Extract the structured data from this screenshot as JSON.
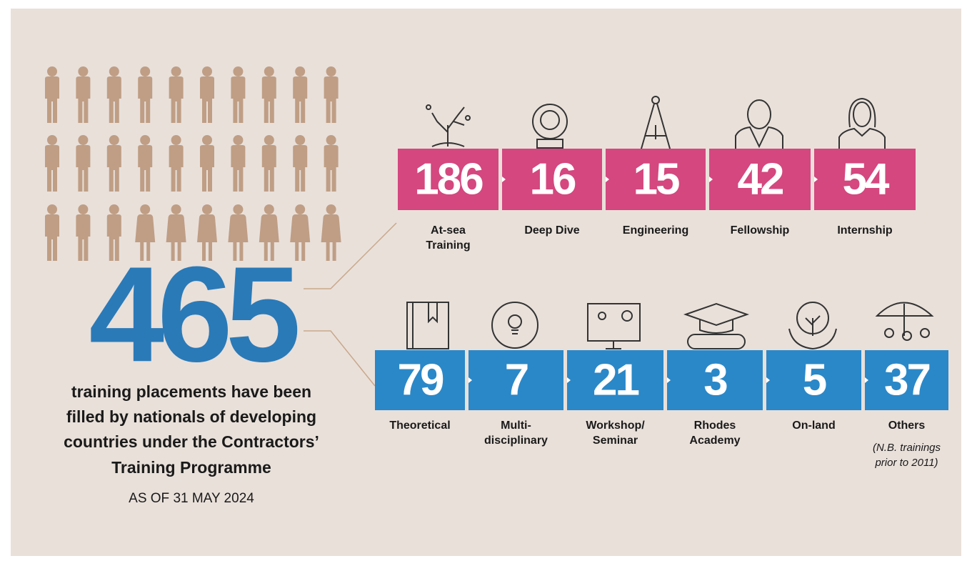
{
  "headline": {
    "value": 465,
    "lines": [
      "training placements have been",
      "filled by nationals of developing",
      "countries under the Contractors’",
      "Training Programme"
    ],
    "date": "AS OF 31 MAY 2024"
  },
  "top_row": [
    {
      "value": 186,
      "label": [
        "At-sea",
        "Training"
      ]
    },
    {
      "value": 16,
      "label": [
        "Deep Dive"
      ]
    },
    {
      "value": 15,
      "label": [
        "Engineering"
      ]
    },
    {
      "value": 42,
      "label": [
        "Fellowship"
      ]
    },
    {
      "value": 54,
      "label": [
        "Internship"
      ]
    }
  ],
  "bottom_row": [
    {
      "value": 79,
      "label": [
        "Theoretical"
      ]
    },
    {
      "value": 7,
      "label": [
        "Multi-",
        "disciplinary"
      ]
    },
    {
      "value": 21,
      "label": [
        "Workshop/",
        "Seminar"
      ]
    },
    {
      "value": 3,
      "label": [
        "Rhodes",
        "Academy"
      ]
    },
    {
      "value": 5,
      "label": [
        "On-land"
      ]
    },
    {
      "value": 37,
      "label": [
        "Others"
      ],
      "note": [
        "(N.B. trainings",
        "prior to 2011)"
      ]
    }
  ]
}
